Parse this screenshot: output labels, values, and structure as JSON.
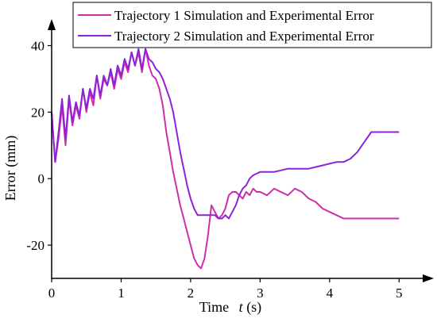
{
  "chart_data": {
    "type": "line",
    "xlabel_prefix": "Time",
    "xlabel_var": "t",
    "xlabel_suffix": "(s)",
    "ylabel": "Error (mm)",
    "xlim": [
      0,
      5.5
    ],
    "ylim": [
      -30,
      48
    ],
    "xticks": [
      0,
      1,
      2,
      3,
      4,
      5
    ],
    "yticks": [
      -20,
      0,
      20,
      40
    ],
    "grid": false,
    "legend_position": "top-right",
    "series": [
      {
        "name": "Trajectory 1 Simulation and Experimental Error",
        "color": "#cc2fa8",
        "x": [
          0.0,
          0.05,
          0.1,
          0.15,
          0.2,
          0.25,
          0.3,
          0.35,
          0.4,
          0.45,
          0.5,
          0.55,
          0.6,
          0.65,
          0.7,
          0.75,
          0.8,
          0.85,
          0.9,
          0.95,
          1.0,
          1.05,
          1.1,
          1.15,
          1.2,
          1.25,
          1.3,
          1.35,
          1.4,
          1.45,
          1.5,
          1.55,
          1.6,
          1.65,
          1.7,
          1.75,
          1.8,
          1.85,
          1.9,
          1.95,
          2.0,
          2.05,
          2.1,
          2.15,
          2.2,
          2.25,
          2.3,
          2.35,
          2.4,
          2.45,
          2.5,
          2.55,
          2.6,
          2.65,
          2.7,
          2.75,
          2.8,
          2.85,
          2.9,
          2.95,
          3.0,
          3.1,
          3.2,
          3.3,
          3.4,
          3.5,
          3.6,
          3.7,
          3.8,
          3.9,
          4.0,
          4.1,
          4.2,
          4.3,
          4.4,
          4.5,
          4.6,
          4.7,
          4.8,
          4.9,
          5.0
        ],
        "y": [
          20,
          5,
          12,
          22,
          10,
          24,
          16,
          22,
          18,
          27,
          20,
          26,
          22,
          31,
          24,
          30,
          28,
          32,
          27,
          33,
          30,
          35,
          32,
          38,
          34,
          38,
          32,
          39,
          34,
          31,
          30,
          27,
          22,
          14,
          8,
          2,
          -3,
          -8,
          -12,
          -16,
          -20,
          -24,
          -26,
          -27,
          -24,
          -17,
          -8,
          -10,
          -12,
          -11,
          -9,
          -5,
          -4,
          -4,
          -5,
          -6,
          -4,
          -5,
          -3,
          -4,
          -4,
          -5,
          -3,
          -4,
          -5,
          -3,
          -4,
          -6,
          -7,
          -9,
          -10,
          -11,
          -12,
          -12,
          -12,
          -12,
          -12,
          -12,
          -12,
          -12,
          -12
        ],
        "x_note": "",
        "y_note": ""
      },
      {
        "name": "Trajectory 2 Simulation and Experimental Error",
        "color": "#8f22d6",
        "x": [
          0.0,
          0.05,
          0.1,
          0.15,
          0.2,
          0.25,
          0.3,
          0.35,
          0.4,
          0.45,
          0.5,
          0.55,
          0.6,
          0.65,
          0.7,
          0.75,
          0.8,
          0.85,
          0.9,
          0.95,
          1.0,
          1.05,
          1.1,
          1.15,
          1.2,
          1.25,
          1.3,
          1.35,
          1.4,
          1.45,
          1.5,
          1.55,
          1.6,
          1.65,
          1.7,
          1.75,
          1.8,
          1.85,
          1.9,
          1.95,
          2.0,
          2.05,
          2.1,
          2.15,
          2.2,
          2.25,
          2.3,
          2.35,
          2.4,
          2.45,
          2.5,
          2.55,
          2.6,
          2.65,
          2.7,
          2.75,
          2.8,
          2.85,
          2.9,
          2.95,
          3.0,
          3.1,
          3.2,
          3.3,
          3.4,
          3.5,
          3.6,
          3.7,
          3.8,
          3.9,
          4.0,
          4.1,
          4.2,
          4.3,
          4.4,
          4.5,
          4.6,
          4.7,
          4.8,
          4.9,
          5.0
        ],
        "y": [
          20,
          5,
          14,
          24,
          12,
          25,
          17,
          23,
          19,
          27,
          21,
          27,
          24,
          31,
          25,
          31,
          28,
          33,
          28,
          34,
          31,
          36,
          33,
          38,
          34,
          39,
          33,
          39,
          36,
          35,
          33,
          32,
          30,
          27,
          24,
          20,
          14,
          8,
          3,
          -2,
          -6,
          -9,
          -11,
          -11,
          -11,
          -11,
          -11,
          -11,
          -12,
          -12,
          -11,
          -12,
          -10,
          -8,
          -5,
          -3,
          -2,
          0,
          1,
          1.5,
          2,
          2,
          2,
          2.5,
          3,
          3,
          3,
          3,
          3.5,
          4,
          4.5,
          5,
          5,
          6,
          8,
          11,
          14,
          14,
          14,
          14,
          14
        ],
        "x_note": "",
        "y_note": ""
      }
    ]
  }
}
